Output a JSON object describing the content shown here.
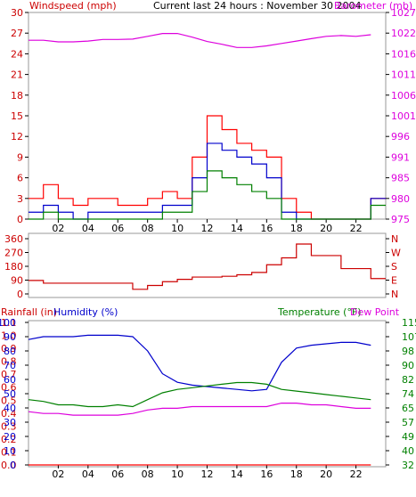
{
  "colors": {
    "red": "#ff0000",
    "darkred": "#cc0000",
    "green": "#008000",
    "blue": "#0000cc",
    "magenta": "#dd00dd",
    "axis": "#000000",
    "frame": "#999999"
  },
  "chart_data": [
    {
      "type": "line",
      "title": "Current last 24 hours : November 30 2004",
      "left_axis_label": "Windspeed (mph)",
      "right_axis_label": "Barometer (mb)",
      "x_ticks": [
        "02",
        "04",
        "06",
        "08",
        "10",
        "12",
        "14",
        "16",
        "18",
        "20",
        "22"
      ],
      "left_ticks": [
        "0",
        "3",
        "6",
        "9",
        "12",
        "15",
        "18",
        "21",
        "24",
        "27",
        "30"
      ],
      "right_ticks": [
        "975",
        "980",
        "985",
        "991",
        "996",
        "1001",
        "1006",
        "1011",
        "1016",
        "1022",
        "1027"
      ],
      "ylim_left": [
        0,
        30
      ],
      "ylim_right": [
        975,
        1027
      ],
      "x": [
        0,
        1,
        2,
        3,
        4,
        5,
        6,
        7,
        8,
        9,
        10,
        11,
        12,
        13,
        14,
        15,
        16,
        17,
        18,
        19,
        20,
        21,
        22,
        23
      ],
      "series": [
        {
          "name": "Windspeed (mph)",
          "color": "red",
          "axis": "left",
          "values": [
            3,
            5,
            3,
            2,
            3,
            3,
            2,
            2,
            3,
            4,
            3,
            9,
            15,
            13,
            11,
            10,
            9,
            3,
            1,
            0,
            0,
            0,
            0,
            3
          ]
        },
        {
          "name": "",
          "color": "blue",
          "axis": "left",
          "values": [
            1,
            2,
            1,
            0,
            1,
            1,
            1,
            1,
            1,
            2,
            2,
            6,
            11,
            10,
            9,
            8,
            6,
            1,
            0,
            0,
            0,
            0,
            0,
            3
          ]
        },
        {
          "name": "",
          "color": "green",
          "axis": "left",
          "values": [
            0,
            1,
            0,
            0,
            0,
            0,
            0,
            0,
            0,
            1,
            1,
            4,
            7,
            6,
            5,
            4,
            3,
            0,
            0,
            0,
            0,
            0,
            0,
            2
          ]
        },
        {
          "name": "Barometer (mb)",
          "color": "magenta",
          "axis": "right",
          "values": [
            1020,
            1020,
            1019.6,
            1019.6,
            1019.8,
            1020.2,
            1020.2,
            1020.3,
            1021,
            1021.7,
            1021.7,
            1020.8,
            1019.7,
            1019,
            1018.2,
            1018.2,
            1018.6,
            1019.2,
            1019.8,
            1020.4,
            1021,
            1021.2,
            1021,
            1021.4
          ]
        }
      ]
    },
    {
      "type": "line",
      "title": "",
      "left_ticks": [
        "360",
        "270",
        "180",
        "90",
        "0"
      ],
      "right_ticks": [
        "N",
        "W",
        "S",
        "E",
        "N"
      ],
      "ylim": [
        0,
        360
      ],
      "x": [
        0,
        1,
        2,
        3,
        4,
        5,
        6,
        7,
        8,
        9,
        10,
        11,
        12,
        13,
        14,
        15,
        16,
        17,
        18,
        19,
        20,
        21,
        22,
        23
      ],
      "series": [
        {
          "name": "",
          "color": "darkred",
          "values": [
            88,
            70,
            70,
            70,
            70,
            70,
            70,
            30,
            55,
            80,
            95,
            110,
            110,
            115,
            125,
            140,
            190,
            235,
            325,
            250,
            250,
            165,
            165,
            100
          ]
        }
      ]
    },
    {
      "type": "line",
      "title": "",
      "labels": {
        "rainfall": "Rainfall (in)",
        "humidity": "Humidity (%)",
        "temperature": "Temperature (°F)",
        "dewpoint": "Dew Point"
      },
      "x_ticks": [
        "02",
        "04",
        "06",
        "08",
        "10",
        "12",
        "14",
        "16",
        "18",
        "20",
        "22"
      ],
      "rain_ticks": [
        "0.0",
        "0.1",
        "0.2",
        "0.3",
        "0.4",
        "0.5",
        "0.6",
        "0.7",
        "0.8",
        "0.9",
        "1.0",
        "1.1"
      ],
      "hum_ticks": [
        "0",
        "10",
        "20",
        "30",
        "40",
        "50",
        "60",
        "70",
        "80",
        "90",
        "100"
      ],
      "temp_ticks": [
        "32",
        "40",
        "49",
        "57",
        "65",
        "74",
        "82",
        "90",
        "98",
        "107",
        "115"
      ],
      "ylim_temp": [
        32,
        115
      ],
      "x": [
        0,
        1,
        2,
        3,
        4,
        5,
        6,
        7,
        8,
        9,
        10,
        11,
        12,
        13,
        14,
        15,
        16,
        17,
        18,
        19,
        20,
        21,
        22,
        23
      ],
      "series": [
        {
          "name": "Humidity (%)",
          "color": "blue",
          "axis": "humidity",
          "values": [
            88,
            90,
            90,
            90,
            91,
            91,
            91,
            90,
            80,
            64,
            58,
            56,
            55,
            54,
            53,
            52,
            53,
            72,
            82,
            84,
            85,
            86,
            86,
            84
          ]
        },
        {
          "name": "Temperature (°F)",
          "color": "green",
          "axis": "temp",
          "values": [
            70,
            69,
            67,
            67,
            66,
            66,
            67,
            66,
            70,
            74,
            76,
            77,
            78,
            79,
            80,
            80,
            79,
            76,
            75,
            74,
            73,
            72,
            71,
            70
          ]
        },
        {
          "name": "Dew Point",
          "color": "magenta",
          "axis": "temp",
          "values": [
            63,
            62,
            62,
            61,
            61,
            61,
            61,
            62,
            64,
            65,
            65,
            66,
            66,
            66,
            66,
            66,
            66,
            68,
            68,
            67,
            67,
            66,
            65,
            65
          ]
        },
        {
          "name": "Rainfall (in)",
          "color": "red",
          "axis": "rain",
          "values": [
            0,
            0,
            0,
            0,
            0,
            0,
            0,
            0,
            0,
            0,
            0,
            0,
            0,
            0,
            0,
            0,
            0,
            0,
            0,
            0,
            0,
            0,
            0,
            0
          ]
        }
      ]
    }
  ]
}
